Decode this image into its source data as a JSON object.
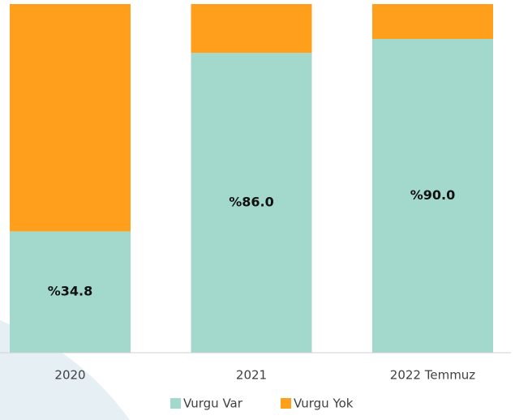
{
  "chart_data": {
    "type": "stacked_bar",
    "categories": [
      "2020",
      "2021",
      "2022 Temmuz"
    ],
    "series": [
      {
        "name": "Vurgu Var",
        "color": "#a2d9cc",
        "values": [
          34.8,
          86.0,
          90.0
        ],
        "value_labels": [
          "%34.8",
          "%86.0",
          "%90.0"
        ]
      },
      {
        "name": "Vurgu Yok",
        "color": "#ff9f1c",
        "values": [
          65.2,
          14.0,
          10.0
        ]
      }
    ],
    "ylim": [
      0,
      100
    ]
  }
}
